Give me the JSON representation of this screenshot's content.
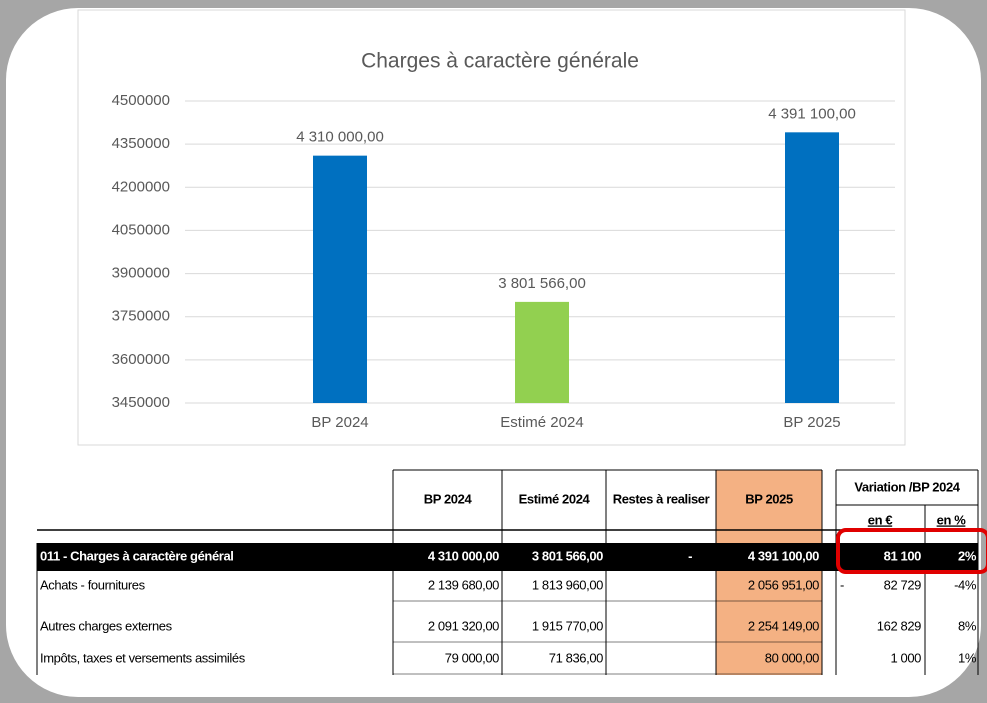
{
  "chart_data": {
    "type": "bar",
    "title": "Charges à caractère générale",
    "categories": [
      "BP 2024",
      "Estimé 2024",
      "BP 2025"
    ],
    "values": [
      4310000,
      3801566,
      4391100
    ],
    "value_labels": [
      "4 310 000,00",
      "3 801 566,00",
      "4 391 100,00"
    ],
    "colors": [
      "#0070c0",
      "#92d050",
      "#0070c0"
    ],
    "ylim": [
      3450000,
      4500000
    ],
    "yticks": [
      3450000,
      3600000,
      3750000,
      3900000,
      4050000,
      4200000,
      4350000,
      4500000
    ],
    "grid": true
  },
  "table": {
    "headers": [
      "BP 2024",
      "Estimé 2024",
      "Restes à realiser",
      "BP 2025"
    ],
    "variation_header": "Variation /BP 2024",
    "variation_subheaders": [
      "en €",
      "en %"
    ],
    "rows": [
      [
        "011 - Charges à caractère général",
        "4 310 000,00",
        "3 801 566,00",
        "-",
        "4 391 100,00",
        null,
        "81 100",
        "2%"
      ],
      [
        "Achats - fournitures",
        "2 139 680,00",
        "1 813 960,00",
        null,
        "2 056 951,00",
        "-",
        "82 729",
        "-4%"
      ],
      [
        "Autres charges externes",
        "2 091 320,00",
        "1 915 770,00",
        null,
        "2 254 149,00",
        null,
        "162 829",
        "8%"
      ],
      [
        "Impôts, taxes et versements assimilés",
        "79 000,00",
        "71 836,00",
        null,
        "80 000,00",
        null,
        "1 000",
        "1%"
      ]
    ]
  }
}
